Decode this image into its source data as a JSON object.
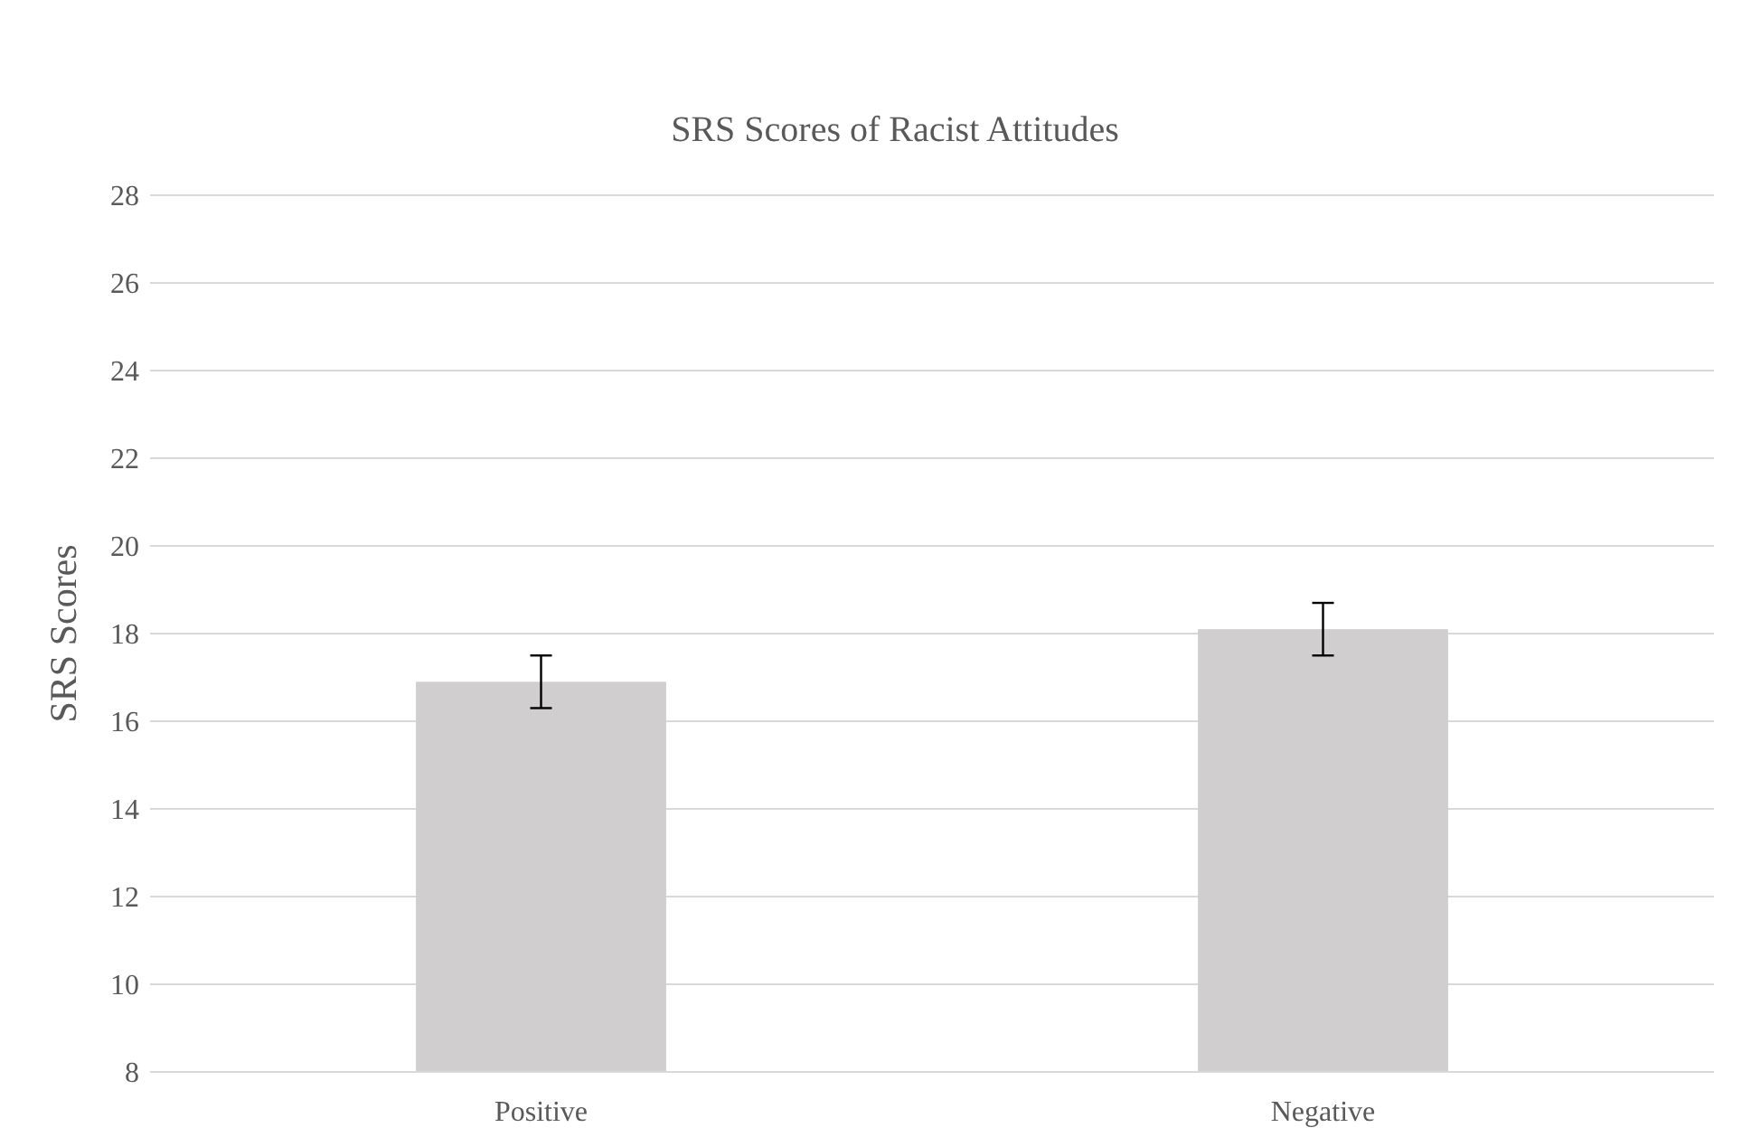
{
  "chart_data": {
    "type": "bar",
    "title": "SRS Scores of Racist Attitudes",
    "ylabel": "SRS Scores",
    "categories": [
      "Positive",
      "Negative"
    ],
    "values": [
      16.9,
      18.1
    ],
    "errors": [
      0.6,
      0.6
    ],
    "color": "#d0cece",
    "ylim": [
      8,
      28
    ],
    "yticks": [
      8,
      10,
      12,
      14,
      16,
      18,
      20,
      22,
      24,
      26,
      28
    ],
    "grid": "y"
  }
}
